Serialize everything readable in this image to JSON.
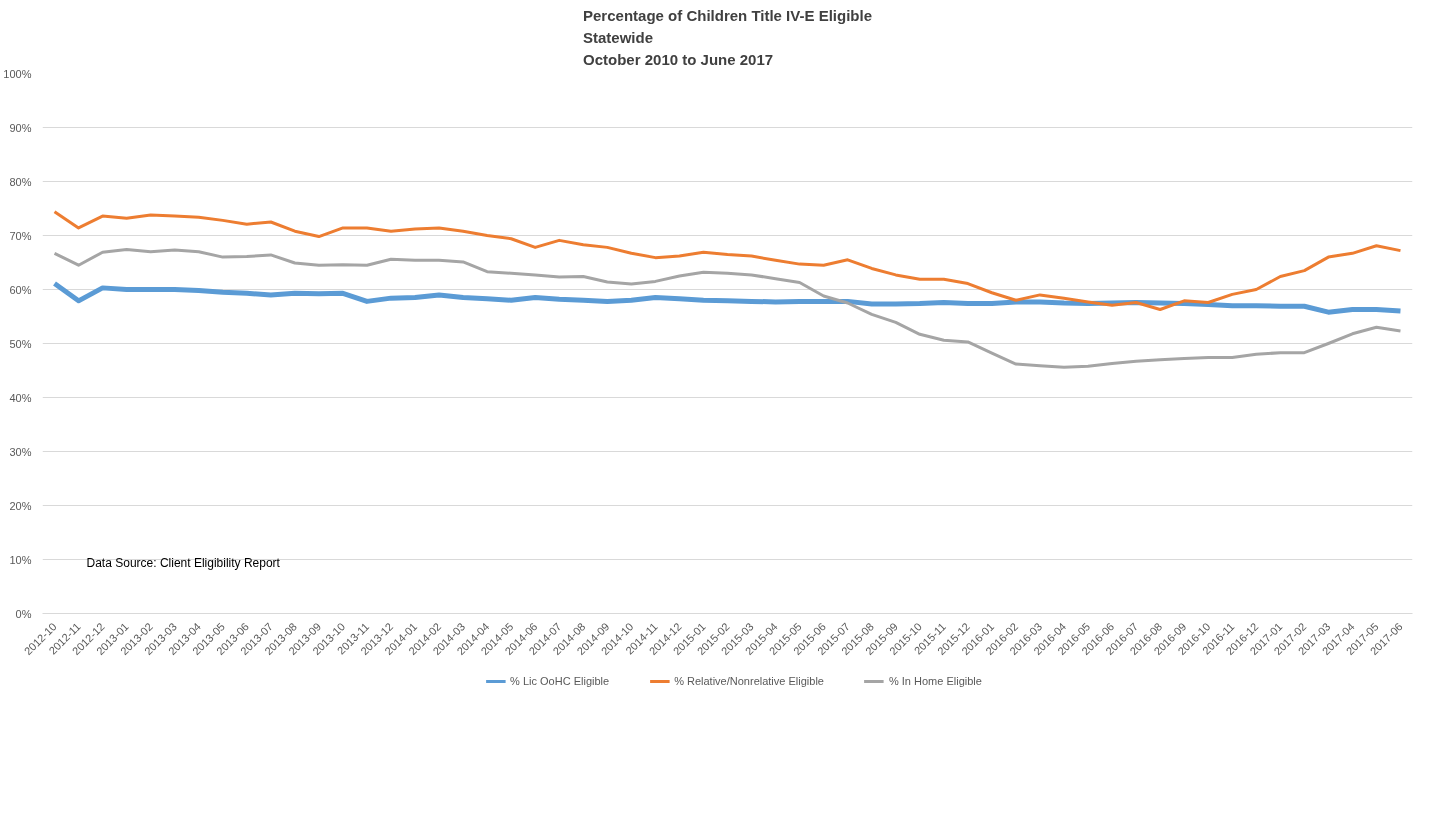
{
  "chart_data": {
    "type": "line",
    "title": "Percentage of Children Title IV-E Eligible",
    "subtitle": "Statewide\nOctober 2010 to June 2017",
    "categories": [
      "2012-10",
      "2012-11",
      "2012-12",
      "2013-01",
      "2013-02",
      "2013-03",
      "2013-04",
      "2013-05",
      "2013-06",
      "2013-07",
      "2013-08",
      "2013-09",
      "2013-10",
      "2013-11",
      "2013-12",
      "2014-01",
      "2014-02",
      "2014-03",
      "2014-04",
      "2014-05",
      "2014-06",
      "2014-07",
      "2014-08",
      "2014-09",
      "2014-10",
      "2014-11",
      "2014-12",
      "2015-01",
      "2015-02",
      "2015-03",
      "2015-04",
      "2015-05",
      "2015-06",
      "2015-07",
      "2015-08",
      "2015-09",
      "2015-10",
      "2015-11",
      "2015-12",
      "2016-01",
      "2016-02",
      "2016-03",
      "2016-04",
      "2016-05",
      "2016-06",
      "2016-07",
      "2016-08",
      "2016-09",
      "2016-10",
      "2016-11",
      "2016-12",
      "2017-01",
      "2017-02",
      "2017-03",
      "2017-04",
      "2017-05",
      "2017-06"
    ],
    "series": [
      {
        "name": "% Lic OoHC Eligible",
        "color": "#5b9bd5",
        "values": [
          61.1,
          57.9,
          60.3,
          60.0,
          60.0,
          60.0,
          59.8,
          59.5,
          59.3,
          59.0,
          59.3,
          59.2,
          59.3,
          57.8,
          58.4,
          58.5,
          59.0,
          58.5,
          58.3,
          58.0,
          58.5,
          58.2,
          58.0,
          57.8,
          58.0,
          58.5,
          58.3,
          58.0,
          57.9,
          57.8,
          57.7,
          57.8,
          57.8,
          57.8,
          57.3,
          57.3,
          57.4,
          57.6,
          57.4,
          57.4,
          57.7,
          57.7,
          57.5,
          57.4,
          57.5,
          57.6,
          57.5,
          57.4,
          57.2,
          57.0,
          57.0,
          56.9,
          56.9,
          55.8,
          56.3,
          56.3,
          56.0
        ]
      },
      {
        "name": "% Relative/Nonrelative Eligible",
        "color": "#ed7d31",
        "values": [
          74.4,
          71.4,
          73.6,
          73.2,
          73.8,
          73.6,
          73.4,
          72.8,
          72.1,
          72.5,
          70.8,
          69.8,
          71.4,
          71.4,
          70.8,
          71.2,
          71.4,
          70.8,
          70.0,
          69.4,
          67.8,
          69.1,
          68.3,
          67.8,
          66.7,
          65.9,
          66.2,
          66.9,
          66.5,
          66.2,
          65.4,
          64.7,
          64.5,
          65.5,
          63.9,
          62.7,
          61.9,
          61.9,
          61.1,
          59.4,
          58.0,
          59.0,
          58.4,
          57.7,
          57.1,
          57.6,
          56.3,
          57.9,
          57.6,
          59.1,
          60.0,
          62.4,
          63.5,
          66.0,
          66.7,
          68.1,
          67.2
        ]
      },
      {
        "name": "% In Home Eligible",
        "color": "#a5a5a5",
        "values": [
          66.7,
          64.5,
          66.9,
          67.4,
          67.0,
          67.3,
          67.0,
          66.0,
          66.1,
          66.4,
          64.9,
          64.5,
          64.6,
          64.5,
          65.6,
          65.4,
          65.4,
          65.1,
          63.3,
          63.0,
          62.7,
          62.3,
          62.4,
          61.4,
          61.0,
          61.5,
          62.5,
          63.2,
          63.0,
          62.7,
          62.0,
          61.3,
          58.8,
          57.5,
          55.4,
          53.9,
          51.7,
          50.6,
          50.3,
          48.2,
          46.2,
          45.9,
          45.6,
          45.8,
          46.3,
          46.7,
          47.0,
          47.2,
          47.4,
          47.4,
          48.0,
          48.3,
          48.3,
          50.0,
          51.8,
          53.0,
          52.3
        ]
      }
    ],
    "ylim": [
      0,
      100
    ],
    "yticks": [
      {
        "value": 0,
        "label": "0%"
      },
      {
        "value": 10,
        "label": "10%"
      },
      {
        "value": 20,
        "label": "20%"
      },
      {
        "value": 30,
        "label": "30%"
      },
      {
        "value": 40,
        "label": "40%"
      },
      {
        "value": 50,
        "label": "50%"
      },
      {
        "value": 60,
        "label": "60%"
      },
      {
        "value": 70,
        "label": "70%"
      },
      {
        "value": 80,
        "label": "80%"
      },
      {
        "value": 90,
        "label": "90%"
      },
      {
        "value": 100,
        "label": "100%"
      }
    ],
    "grid": "y",
    "legend": "bottom",
    "marker": "none",
    "line_style": "solid",
    "annotations": [
      "Data Source: Client Eligibility Report"
    ]
  }
}
